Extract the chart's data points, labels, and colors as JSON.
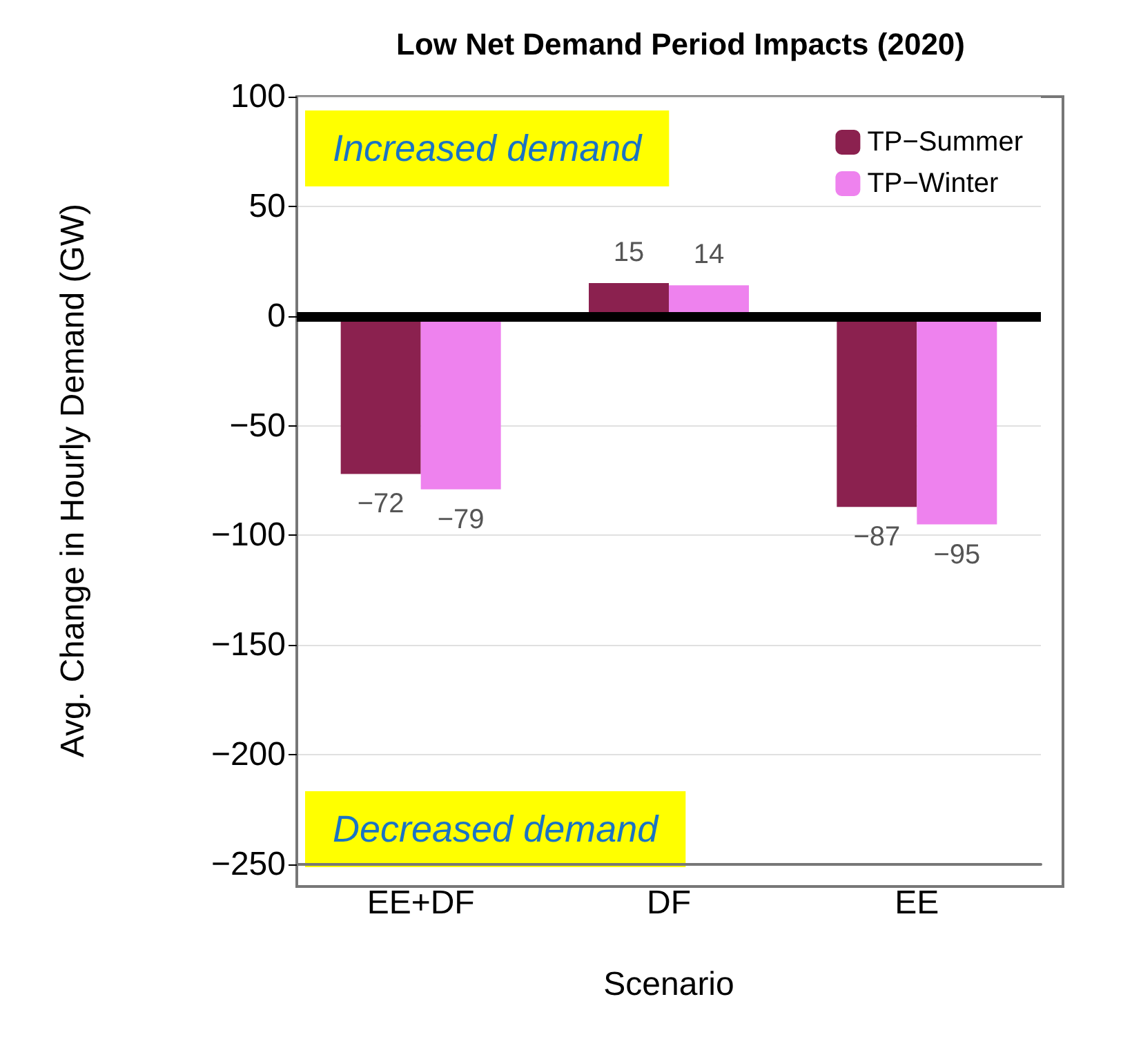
{
  "chart_data": {
    "type": "bar",
    "title": "Low Net Demand Period Impacts (2020)",
    "xlabel": "Scenario",
    "ylabel": "Avg. Change in Hourly Demand (GW)",
    "categories": [
      "EE+DF",
      "DF",
      "EE"
    ],
    "series": [
      {
        "name": "TP−Summer",
        "color": "#8b214f",
        "values": [
          -72,
          15,
          -87
        ]
      },
      {
        "name": "TP−Winter",
        "color": "#ee82ee",
        "values": [
          -79,
          14,
          -95
        ]
      }
    ],
    "ylim": [
      -250,
      100
    ],
    "yticks": [
      -250,
      -200,
      -150,
      -100,
      -50,
      0,
      50,
      100
    ],
    "grid": "y",
    "legend": "top right",
    "data_labels": true,
    "ref_lines": [
      {
        "axis": "y",
        "value": 0,
        "color": "#000000"
      }
    ],
    "annotations": [
      "Increased demand",
      "Decreased demand"
    ]
  }
}
